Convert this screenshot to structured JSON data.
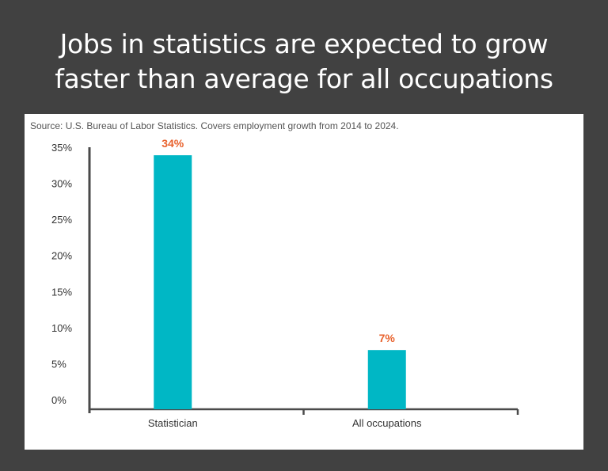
{
  "header": {
    "title_line1": "Jobs in statistics are expected to grow",
    "title_line2": "faster than average for all occupations"
  },
  "source": "Source: U.S. Bureau of Labor Statistics. Covers employment growth from 2014 to 2024.",
  "colors": {
    "bar": "#00b7c5",
    "data_label": "#e8622d",
    "axis": "#4a4a4a",
    "background": "#414141"
  },
  "chart_data": {
    "type": "bar",
    "title": "",
    "xlabel": "",
    "ylabel": "",
    "categories": [
      "Statistician",
      "All occupations"
    ],
    "values": [
      34,
      7
    ],
    "data_labels": [
      "34%",
      "7%"
    ],
    "ylim": [
      0,
      35
    ],
    "yticks": [
      0,
      5,
      10,
      15,
      20,
      25,
      30,
      35
    ],
    "ytick_labels": [
      "0%",
      "5%",
      "10%",
      "15%",
      "20%",
      "25%",
      "30%",
      "35%"
    ],
    "grid": false,
    "legend": "none"
  }
}
